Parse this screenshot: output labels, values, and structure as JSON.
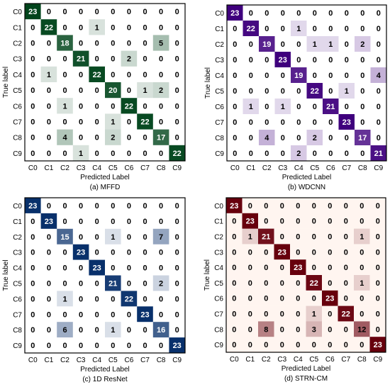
{
  "chart_data": [
    {
      "type": "heatmap",
      "caption": "(a) MFFD",
      "xlabel": "Predicted Label",
      "ylabel": "True label",
      "row_labels": [
        "C0",
        "C1",
        "C2",
        "C3",
        "C4",
        "C5",
        "C6",
        "C7",
        "C8",
        "C9"
      ],
      "col_labels": [
        "C0",
        "C1",
        "C2",
        "C3",
        "C4",
        "C5",
        "C6",
        "C7",
        "C8",
        "C9"
      ],
      "matrix": [
        [
          23,
          0,
          0,
          0,
          0,
          0,
          0,
          0,
          0,
          0
        ],
        [
          0,
          22,
          0,
          0,
          1,
          0,
          0,
          0,
          0,
          0
        ],
        [
          0,
          0,
          18,
          0,
          0,
          0,
          0,
          0,
          5,
          0
        ],
        [
          0,
          0,
          0,
          21,
          0,
          0,
          2,
          0,
          0,
          0
        ],
        [
          0,
          1,
          0,
          0,
          22,
          0,
          0,
          0,
          0,
          0
        ],
        [
          0,
          0,
          0,
          0,
          0,
          20,
          0,
          1,
          2,
          0
        ],
        [
          0,
          0,
          1,
          0,
          0,
          0,
          22,
          0,
          0,
          0
        ],
        [
          0,
          0,
          0,
          0,
          0,
          1,
          0,
          22,
          0,
          0
        ],
        [
          0,
          0,
          4,
          0,
          0,
          2,
          0,
          0,
          17,
          0
        ],
        [
          0,
          0,
          0,
          1,
          0,
          0,
          0,
          0,
          0,
          22
        ]
      ],
      "vmax": 23,
      "color_low": "#ffffff",
      "color_high": "#00441b"
    },
    {
      "type": "heatmap",
      "caption": "(b) WDCNN",
      "xlabel": "Predicted Label",
      "ylabel": "True label",
      "row_labels": [
        "C0",
        "C1",
        "C2",
        "C3",
        "C4",
        "C5",
        "C6",
        "C7",
        "C8",
        "C9"
      ],
      "col_labels": [
        "C0",
        "C1",
        "C2",
        "C3",
        "C4",
        "C5",
        "C6",
        "C7",
        "C8",
        "C9"
      ],
      "matrix": [
        [
          23,
          0,
          0,
          0,
          0,
          0,
          0,
          0,
          0,
          0
        ],
        [
          0,
          22,
          0,
          0,
          1,
          0,
          0,
          0,
          0,
          0
        ],
        [
          0,
          0,
          19,
          0,
          0,
          1,
          1,
          0,
          2,
          0
        ],
        [
          0,
          0,
          0,
          23,
          0,
          0,
          0,
          0,
          0,
          0
        ],
        [
          0,
          0,
          0,
          0,
          19,
          0,
          0,
          0,
          0,
          4
        ],
        [
          0,
          0,
          0,
          0,
          0,
          22,
          0,
          1,
          0,
          0
        ],
        [
          0,
          1,
          0,
          1,
          0,
          0,
          21,
          0,
          0,
          0
        ],
        [
          0,
          0,
          0,
          0,
          0,
          0,
          0,
          23,
          0,
          0
        ],
        [
          0,
          0,
          4,
          0,
          0,
          2,
          0,
          0,
          17,
          0
        ],
        [
          0,
          0,
          0,
          0,
          2,
          0,
          0,
          0,
          0,
          21
        ]
      ],
      "vmax": 23,
      "color_low": "#ffffff",
      "color_high": "#3f007d"
    },
    {
      "type": "heatmap",
      "caption": "(c) 1D ResNet",
      "xlabel": "Predicted Label",
      "ylabel": "True label",
      "row_labels": [
        "C0",
        "C1",
        "C2",
        "C3",
        "C4",
        "C5",
        "C6",
        "C7",
        "C8",
        "C9"
      ],
      "col_labels": [
        "C0",
        "C1",
        "C2",
        "C3",
        "C4",
        "C5",
        "C6",
        "C7",
        "C8",
        "C9"
      ],
      "matrix": [
        [
          23,
          0,
          0,
          0,
          0,
          0,
          0,
          0,
          0,
          0
        ],
        [
          0,
          23,
          0,
          0,
          0,
          0,
          0,
          0,
          0,
          0
        ],
        [
          0,
          0,
          15,
          0,
          0,
          1,
          0,
          0,
          7,
          0
        ],
        [
          0,
          0,
          0,
          23,
          0,
          0,
          0,
          0,
          0,
          0
        ],
        [
          0,
          0,
          0,
          0,
          23,
          0,
          0,
          0,
          0,
          0
        ],
        [
          0,
          0,
          0,
          0,
          0,
          21,
          0,
          0,
          2,
          0
        ],
        [
          0,
          0,
          1,
          0,
          0,
          0,
          22,
          0,
          0,
          0
        ],
        [
          0,
          0,
          0,
          0,
          0,
          0,
          0,
          23,
          0,
          0
        ],
        [
          0,
          0,
          6,
          0,
          0,
          1,
          0,
          0,
          16,
          0
        ],
        [
          0,
          0,
          0,
          0,
          0,
          0,
          0,
          0,
          0,
          23
        ]
      ],
      "vmax": 23,
      "color_low": "#ffffff",
      "color_high": "#08306b"
    },
    {
      "type": "heatmap",
      "caption": "(d) STRN-CM",
      "xlabel": "Predicted Label",
      "ylabel": "True label",
      "row_labels": [
        "C0",
        "C1",
        "C2",
        "C3",
        "C4",
        "C5",
        "C6",
        "C7",
        "C8",
        "C9"
      ],
      "col_labels": [
        "C0",
        "C1",
        "C2",
        "C3",
        "C4",
        "C5",
        "C6",
        "C7",
        "C8",
        "C9"
      ],
      "matrix": [
        [
          23,
          0,
          0,
          0,
          0,
          0,
          0,
          0,
          0,
          0
        ],
        [
          0,
          23,
          0,
          0,
          0,
          0,
          0,
          0,
          0,
          0
        ],
        [
          0,
          1,
          21,
          0,
          0,
          0,
          0,
          0,
          1,
          0
        ],
        [
          0,
          0,
          0,
          23,
          0,
          0,
          0,
          0,
          0,
          0
        ],
        [
          0,
          0,
          0,
          0,
          23,
          0,
          0,
          0,
          0,
          0
        ],
        [
          0,
          0,
          0,
          0,
          0,
          22,
          0,
          0,
          1,
          0
        ],
        [
          0,
          0,
          0,
          0,
          0,
          0,
          23,
          0,
          0,
          0
        ],
        [
          0,
          0,
          0,
          0,
          0,
          1,
          0,
          22,
          0,
          0
        ],
        [
          0,
          0,
          8,
          0,
          0,
          3,
          0,
          0,
          12,
          0
        ],
        [
          0,
          0,
          0,
          0,
          0,
          0,
          0,
          0,
          0,
          23
        ]
      ],
      "vmax": 23,
      "color_low": "#fff5f0",
      "color_high": "#67000d"
    }
  ]
}
